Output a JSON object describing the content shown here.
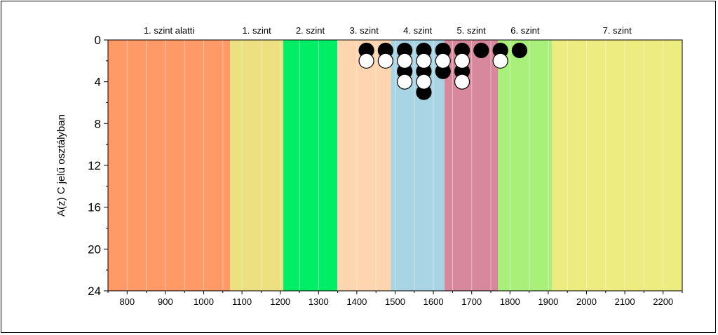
{
  "chart_data": {
    "type": "scatter",
    "title": "",
    "xlabel": "",
    "ylabel": "A(z) C jelű osztályban",
    "xlim": [
      750,
      2250
    ],
    "ylim": [
      24,
      0
    ],
    "x_ticks": [
      "800",
      "900",
      "1000",
      "1100",
      "1200",
      "1300",
      "1400",
      "1500",
      "1600",
      "1700",
      "1800",
      "1900",
      "2000",
      "2100",
      "2200"
    ],
    "y_ticks": [
      "0",
      "4",
      "8",
      "12",
      "16",
      "20",
      "24"
    ],
    "grid": true,
    "levels": [
      {
        "label": "1. szint alatti",
        "from": 750,
        "to": 1069,
        "color": "#ff9966"
      },
      {
        "label": "1. szint",
        "from": 1069,
        "to": 1208,
        "color": "#ece080"
      },
      {
        "label": "2. szint",
        "from": 1208,
        "to": 1349,
        "color": "#00ee66"
      },
      {
        "label": "3. szint",
        "from": 1349,
        "to": 1489,
        "color": "#ffd5b0"
      },
      {
        "label": "4. szint",
        "from": 1489,
        "to": 1629,
        "color": "#a8d4e4"
      },
      {
        "label": "5. szint",
        "from": 1629,
        "to": 1769,
        "color": "#d8889c"
      },
      {
        "label": "6. szint",
        "from": 1769,
        "to": 1910,
        "color": "#a8f07a"
      },
      {
        "label": "7. szint",
        "from": 1910,
        "to": 2250,
        "color": "#ecec80"
      }
    ],
    "series": [
      {
        "color": "#000000",
        "points": [
          {
            "x": 1425,
            "y": 1
          },
          {
            "x": 1475,
            "y": 1
          },
          {
            "x": 1525,
            "y": 1
          },
          {
            "x": 1525,
            "y": 3
          },
          {
            "x": 1575,
            "y": 1
          },
          {
            "x": 1575,
            "y": 3
          },
          {
            "x": 1575,
            "y": 5
          },
          {
            "x": 1625,
            "y": 1
          },
          {
            "x": 1625,
            "y": 3
          },
          {
            "x": 1675,
            "y": 1
          },
          {
            "x": 1675,
            "y": 3
          },
          {
            "x": 1725,
            "y": 1
          },
          {
            "x": 1775,
            "y": 1
          },
          {
            "x": 1825,
            "y": 1
          }
        ]
      },
      {
        "color": "#ffffff",
        "points": [
          {
            "x": 1425,
            "y": 2
          },
          {
            "x": 1475,
            "y": 2
          },
          {
            "x": 1525,
            "y": 2
          },
          {
            "x": 1525,
            "y": 4
          },
          {
            "x": 1575,
            "y": 2
          },
          {
            "x": 1575,
            "y": 4
          },
          {
            "x": 1625,
            "y": 2
          },
          {
            "x": 1675,
            "y": 2
          },
          {
            "x": 1675,
            "y": 4
          },
          {
            "x": 1775,
            "y": 2
          }
        ]
      }
    ]
  }
}
